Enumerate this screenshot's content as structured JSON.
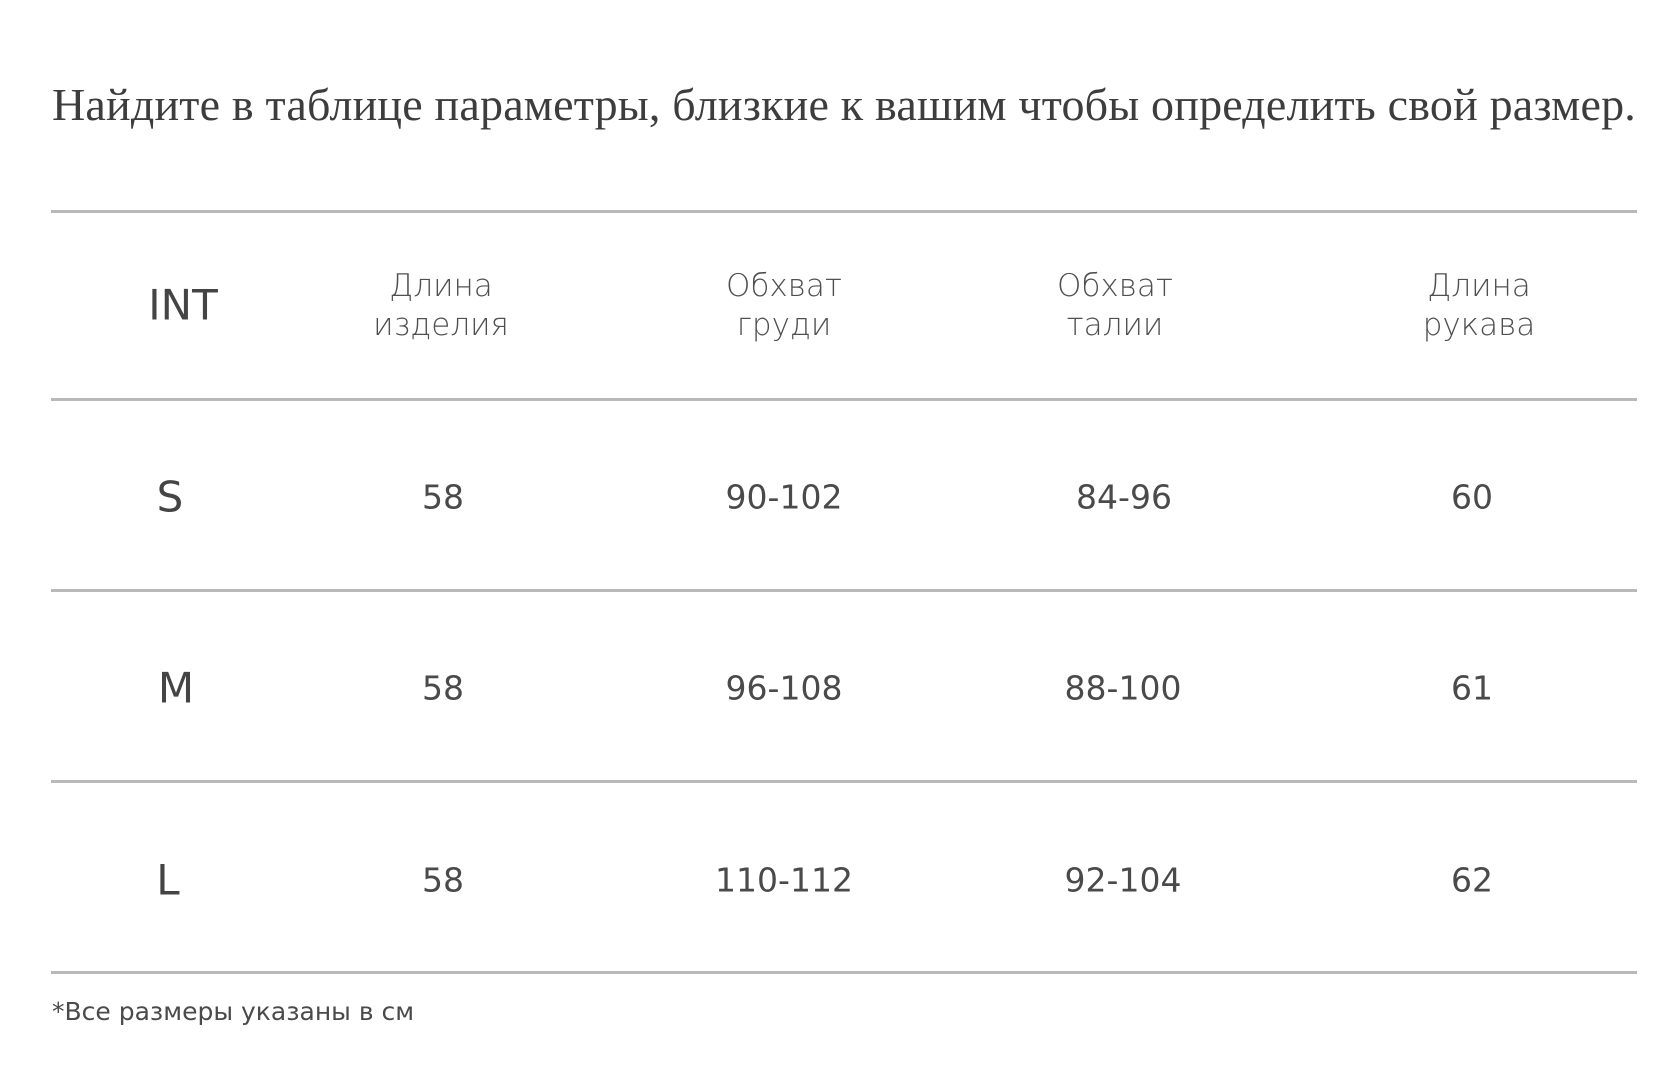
{
  "intro_text": "Найдите в таблице параметры, близкие к вашим чтобы определить свой размер.",
  "table": {
    "columns": [
      {
        "line1": "INT",
        "line2": ""
      },
      {
        "line1": "Длина",
        "line2": "изделия"
      },
      {
        "line1": "Обхват",
        "line2": "груди"
      },
      {
        "line1": "Обхват",
        "line2": "талии"
      },
      {
        "line1": "Длина",
        "line2": "рукава"
      }
    ],
    "rows": [
      {
        "size": "S",
        "length": "58",
        "chest": "90-102",
        "waist": "84-96",
        "sleeve": "60"
      },
      {
        "size": "M",
        "length": "58",
        "chest": "96-108",
        "waist": "88-100",
        "sleeve": "61"
      },
      {
        "size": "L",
        "length": "58",
        "chest": "110-112",
        "waist": "92-104",
        "sleeve": "62"
      }
    ]
  },
  "footnote": "*Все размеры указаны в см"
}
